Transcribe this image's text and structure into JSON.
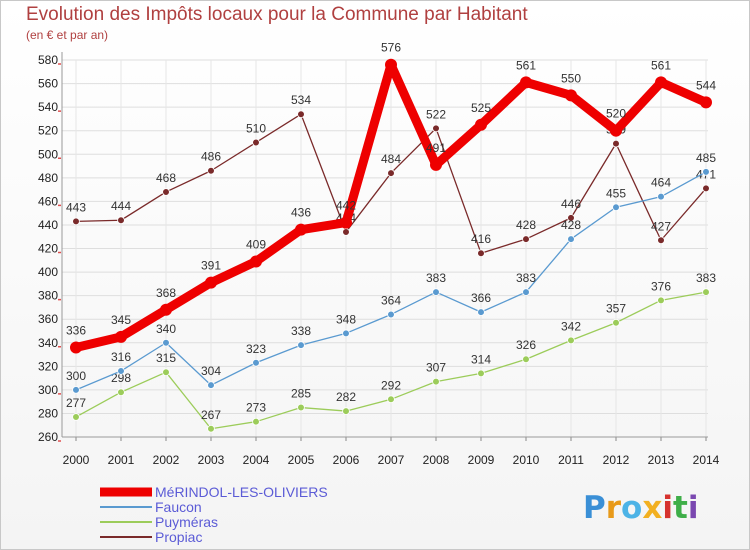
{
  "header": {
    "title": "Evolution des Impôts locaux pour la Commune par Habitant",
    "subtitle": "(en € et par an)"
  },
  "logo": {
    "text": "Proxiti",
    "letters": [
      "P",
      "r",
      "o",
      "x",
      "i",
      "t",
      "i"
    ],
    "colors": [
      "#3a8fd6",
      "#e89a1a",
      "#4db3e6",
      "#f2b021",
      "#d6322e",
      "#3fae49",
      "#7a48b0"
    ]
  },
  "chart_data": {
    "type": "line",
    "title": "Evolution des Impôts locaux pour la Commune par Habitant",
    "subtitle": "(en € et par an)",
    "xlabel": "",
    "ylabel": "",
    "ylim": [
      260,
      580
    ],
    "ytick_step": 20,
    "grid": true,
    "legend_position": "bottom-left",
    "categories": [
      "2000",
      "2001",
      "2002",
      "2003",
      "2004",
      "2005",
      "2006",
      "2007",
      "2008",
      "2009",
      "2010",
      "2011",
      "2012",
      "2013",
      "2014"
    ],
    "series": [
      {
        "name": "Propiac",
        "color": "#7a2a2a",
        "values": [
          443,
          444,
          468,
          486,
          510,
          534,
          434,
          484,
          522,
          416,
          428,
          446,
          509,
          427,
          471
        ]
      },
      {
        "name": "Puyméras",
        "color": "#9ccc5a",
        "values": [
          277,
          298,
          315,
          267,
          273,
          285,
          282,
          292,
          307,
          314,
          326,
          342,
          357,
          376,
          383
        ]
      },
      {
        "name": "Faucon",
        "color": "#5a9ad0",
        "values": [
          300,
          316,
          340,
          304,
          323,
          338,
          348,
          364,
          383,
          366,
          383,
          428,
          455,
          464,
          485
        ]
      },
      {
        "name": "MéRINDOL-LES-OLIVIERS",
        "color": "#ee0000",
        "values": [
          336,
          345,
          368,
          391,
          409,
          436,
          442,
          576,
          491,
          525,
          561,
          550,
          520,
          561,
          544
        ],
        "highlight": true
      }
    ],
    "legend": [
      "MéRINDOL-LES-OLIVIERS",
      "Faucon",
      "Puyméras",
      "Propiac"
    ]
  }
}
